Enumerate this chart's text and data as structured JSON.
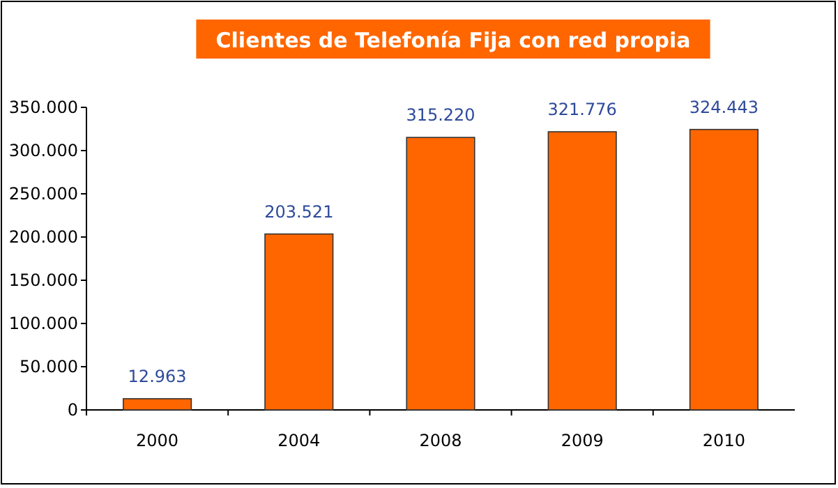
{
  "chart_data": {
    "type": "bar",
    "title": "Clientes de Telefonía Fija con red propia",
    "categories": [
      "2000",
      "2004",
      "2008",
      "2009",
      "2010"
    ],
    "values": [
      12963,
      203521,
      315220,
      321776,
      324443
    ],
    "value_labels": [
      "12.963",
      "203.521",
      "315.220",
      "321.776",
      "324.443"
    ],
    "color": "#ff6600",
    "ylim": [
      0,
      350000
    ],
    "yticks": [
      {
        "value": 0,
        "label": "0"
      },
      {
        "value": 50000,
        "label": "50.000"
      },
      {
        "value": 100000,
        "label": "100.000"
      },
      {
        "value": 150000,
        "label": "150.000"
      },
      {
        "value": 200000,
        "label": "200.000"
      },
      {
        "value": 250000,
        "label": "250.000"
      },
      {
        "value": 300000,
        "label": "300.000"
      },
      {
        "value": 350000,
        "label": "350.000"
      }
    ],
    "grid": false
  }
}
